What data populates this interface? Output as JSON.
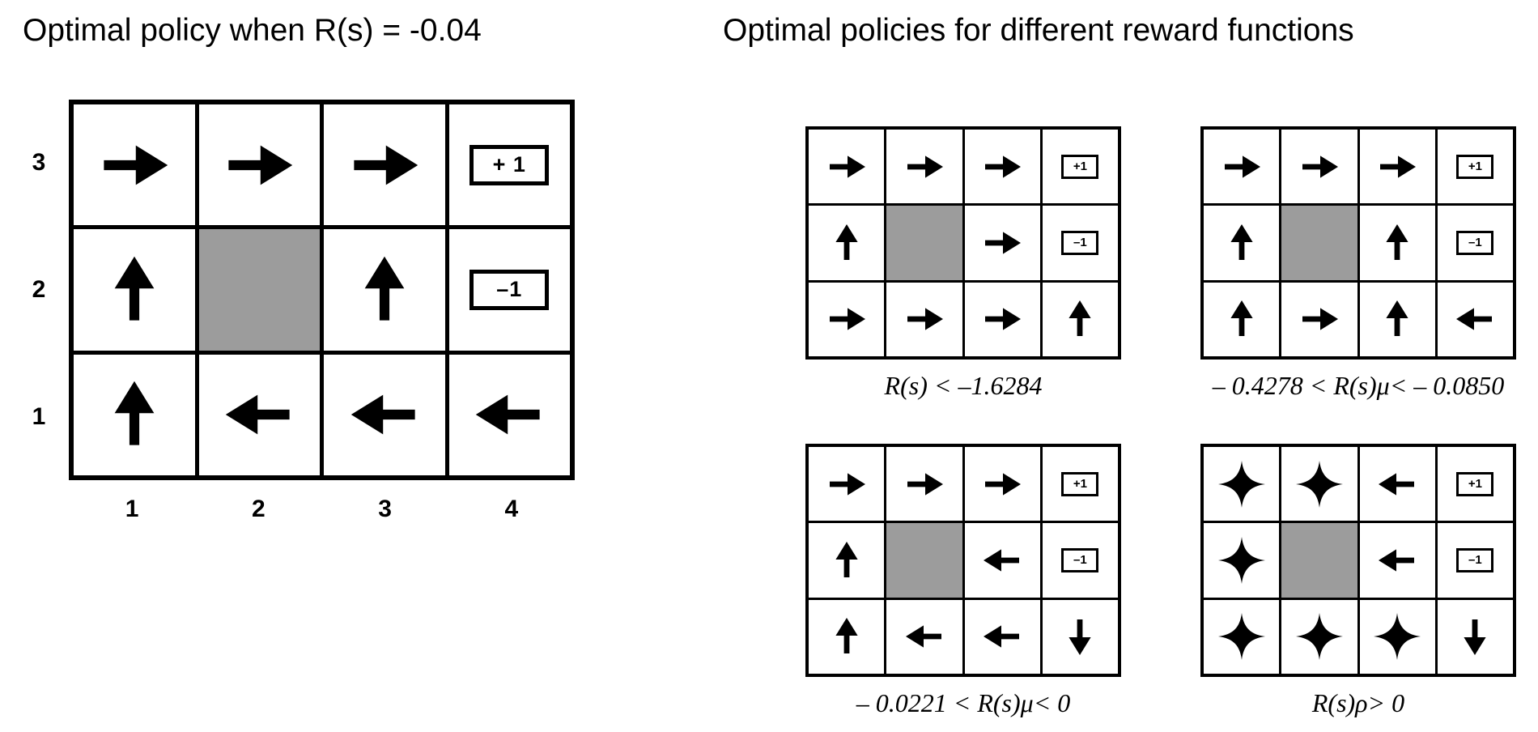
{
  "left_panel": {
    "title": "Optimal policy when R(s) = -0.04",
    "row_labels": [
      "3",
      "2",
      "1"
    ],
    "col_labels": [
      "1",
      "2",
      "3",
      "4"
    ],
    "grid": [
      [
        "right",
        "right",
        "right",
        "+ 1"
      ],
      [
        "up",
        "wall",
        "up",
        "–1"
      ],
      [
        "up",
        "left",
        "left",
        "left"
      ]
    ]
  },
  "right_panel": {
    "title": "Optimal policies for different reward functions",
    "grids": [
      {
        "label": "R(s) < –1.6284",
        "cells": [
          [
            "right",
            "right",
            "right",
            "+1"
          ],
          [
            "up",
            "wall",
            "right",
            "–1"
          ],
          [
            "right",
            "right",
            "right",
            "up"
          ]
        ]
      },
      {
        "label": "– 0.4278 < R(s)μ< – 0.0850",
        "cells": [
          [
            "right",
            "right",
            "right",
            "+1"
          ],
          [
            "up",
            "wall",
            "up",
            "–1"
          ],
          [
            "up",
            "right",
            "up",
            "left"
          ]
        ]
      },
      {
        "label": "– 0.0221 < R(s)μ< 0",
        "cells": [
          [
            "right",
            "right",
            "right",
            "+1"
          ],
          [
            "up",
            "wall",
            "left",
            "–1"
          ],
          [
            "up",
            "left",
            "left",
            "down"
          ]
        ]
      },
      {
        "label": "R(s)ρ> 0",
        "cells": [
          [
            "star",
            "star",
            "left",
            "+1"
          ],
          [
            "star",
            "wall",
            "left",
            "–1"
          ],
          [
            "star",
            "star",
            "star",
            "down"
          ]
        ]
      }
    ]
  },
  "colors": {
    "wall": "#9c9c9c",
    "ink": "#000000",
    "background": "#ffffff"
  }
}
